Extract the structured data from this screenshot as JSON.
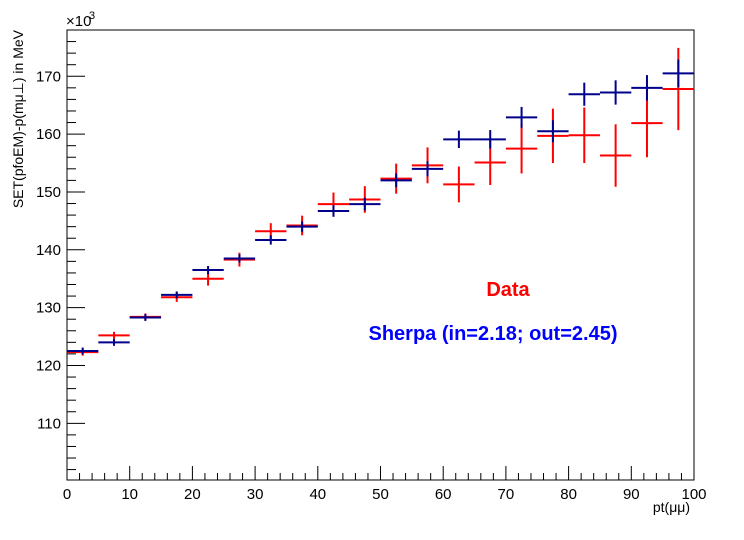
{
  "chart_data": {
    "type": "scatter",
    "xlabel": "pt(μμ)",
    "ylabel": "SET(pfoEM)-p(mμ⊥) in MeV",
    "yexponent_label": "×10",
    "yexponent_power": "3",
    "xlim": [
      0,
      100
    ],
    "ylim": [
      100.2,
      178
    ],
    "xticks": [
      0,
      10,
      20,
      30,
      40,
      50,
      60,
      70,
      80,
      90,
      100
    ],
    "xtick_labels": [
      "0",
      "10",
      "20",
      "30",
      "40",
      "50",
      "60",
      "70",
      "80",
      "90",
      "100"
    ],
    "yticks": [
      110,
      120,
      130,
      140,
      150,
      160,
      170
    ],
    "ytick_labels": [
      "110",
      "120",
      "130",
      "140",
      "150",
      "160",
      "170"
    ],
    "grid": false,
    "legend": [
      {
        "text": "Data",
        "color": "#ff0000"
      },
      {
        "text": "Sherpa (in=2.18; out=2.45)",
        "color": "#0000ff"
      }
    ],
    "series": [
      {
        "key": "data",
        "color": "#ff0000",
        "x": [
          2.5,
          7.5,
          12.5,
          17.5,
          22.5,
          27.5,
          32.5,
          37.5,
          42.5,
          47.5,
          52.5,
          57.5,
          62.5,
          67.5,
          72.5,
          77.5,
          82.5,
          87.5,
          92.5,
          97.5
        ],
        "xerr": 2.5,
        "y": [
          122.3,
          125.2,
          128.4,
          131.8,
          135.0,
          138.3,
          143.2,
          144.2,
          147.9,
          148.7,
          152.3,
          154.6,
          151.3,
          155.1,
          157.5,
          159.7,
          159.8,
          156.3,
          161.9,
          167.8
        ],
        "yerr": [
          0.6,
          0.6,
          0.6,
          0.8,
          1.2,
          1.2,
          1.4,
          1.7,
          2.0,
          2.3,
          2.6,
          3.1,
          3.1,
          3.9,
          4.3,
          4.7,
          4.8,
          5.4,
          5.9,
          7.1
        ]
      },
      {
        "key": "sherpa",
        "color": "#00008b",
        "x": [
          2.5,
          7.5,
          12.5,
          17.5,
          22.5,
          27.5,
          32.5,
          37.5,
          42.5,
          47.5,
          52.5,
          57.5,
          62.5,
          67.5,
          72.5,
          77.5,
          82.5,
          87.5,
          92.5,
          97.5
        ],
        "xerr": 2.5,
        "y": [
          122.5,
          124.0,
          128.3,
          132.2,
          136.5,
          138.5,
          141.7,
          144.0,
          146.7,
          147.9,
          152.0,
          154.0,
          159.1,
          159.1,
          162.9,
          160.5,
          166.9,
          167.2,
          168.0,
          170.5
        ],
        "yerr": [
          0.6,
          0.6,
          0.6,
          0.6,
          0.7,
          0.7,
          0.8,
          0.9,
          1.0,
          1.1,
          1.2,
          1.3,
          1.5,
          1.6,
          1.8,
          1.9,
          2.0,
          2.1,
          2.2,
          2.4
        ]
      }
    ]
  }
}
